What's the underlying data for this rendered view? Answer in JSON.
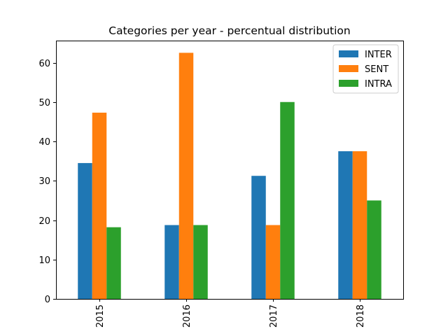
{
  "chart_data": {
    "type": "bar",
    "title": "Categories per year - percentual distribution",
    "xlabel": "",
    "ylabel": "",
    "categories": [
      "2015",
      "2016",
      "2017",
      "2018"
    ],
    "series": [
      {
        "name": "INTER",
        "color": "#1f77b4",
        "values": [
          34.5,
          18.75,
          31.25,
          37.5
        ]
      },
      {
        "name": "SENT",
        "color": "#ff7f0e",
        "values": [
          47.3,
          62.5,
          18.75,
          37.5
        ]
      },
      {
        "name": "INTRA",
        "color": "#2ca02c",
        "values": [
          18.2,
          18.75,
          50.0,
          25.0
        ]
      }
    ],
    "ylim": [
      0,
      65.6
    ],
    "yticks": [
      0,
      10,
      20,
      30,
      40,
      50,
      60
    ],
    "grid": false,
    "legend_position": "top-right"
  }
}
